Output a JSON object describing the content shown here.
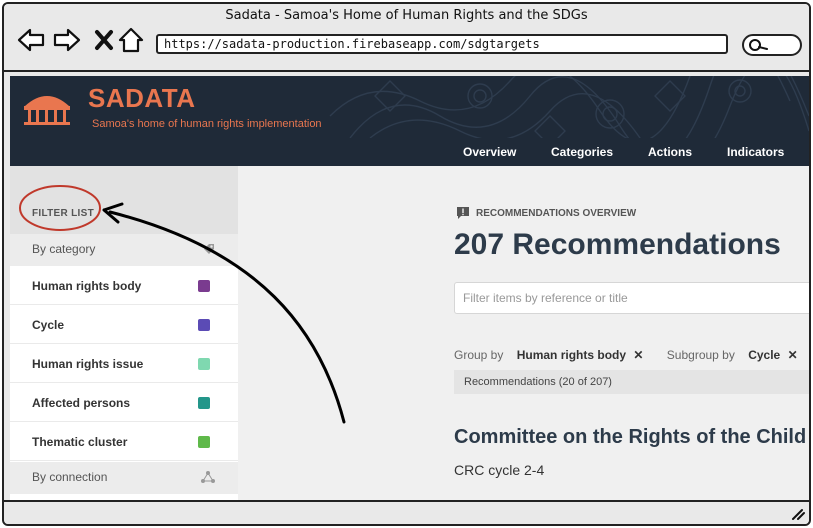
{
  "window": {
    "title": "Sadata - Samoa's Home of Human Rights and the SDGs",
    "url": "https://sadata-production.firebaseapp.com/sdgtargets"
  },
  "site": {
    "brand": "SADATA",
    "tagline": "Samoa's home of human rights implementation",
    "accent_color": "#e9764f",
    "header_color": "#1f2a38",
    "nav": [
      {
        "label": "Overview"
      },
      {
        "label": "Categories"
      },
      {
        "label": "Actions"
      },
      {
        "label": "Indicators"
      }
    ]
  },
  "sidebar": {
    "title": "FILTER LIST",
    "by_category": "By category",
    "by_connection": "By connection",
    "items": [
      {
        "label": "Human rights body",
        "color": "#7a3b8f"
      },
      {
        "label": "Cycle",
        "color": "#5b4bb5"
      },
      {
        "label": "Human rights issue",
        "color": "#7fd8b0"
      },
      {
        "label": "Affected persons",
        "color": "#23968a"
      },
      {
        "label": "Thematic cluster",
        "color": "#5fb94a"
      }
    ]
  },
  "main": {
    "overview_label": "RECOMMENDATIONS OVERVIEW",
    "title": "207 Recommendations",
    "search_placeholder": "Filter items by reference or title",
    "group_by_label": "Group by",
    "group_by_value": "Human rights body",
    "subgroup_by_label": "Subgroup by",
    "subgroup_by_value": "Cycle",
    "count_text": "Recommendations (20 of 207)",
    "section_title": "Committee on the Rights of the Child",
    "section_subtitle": "CRC cycle 2-4"
  },
  "annotation": {
    "circle_color": "#c0392b",
    "arrow_color": "#000000"
  }
}
